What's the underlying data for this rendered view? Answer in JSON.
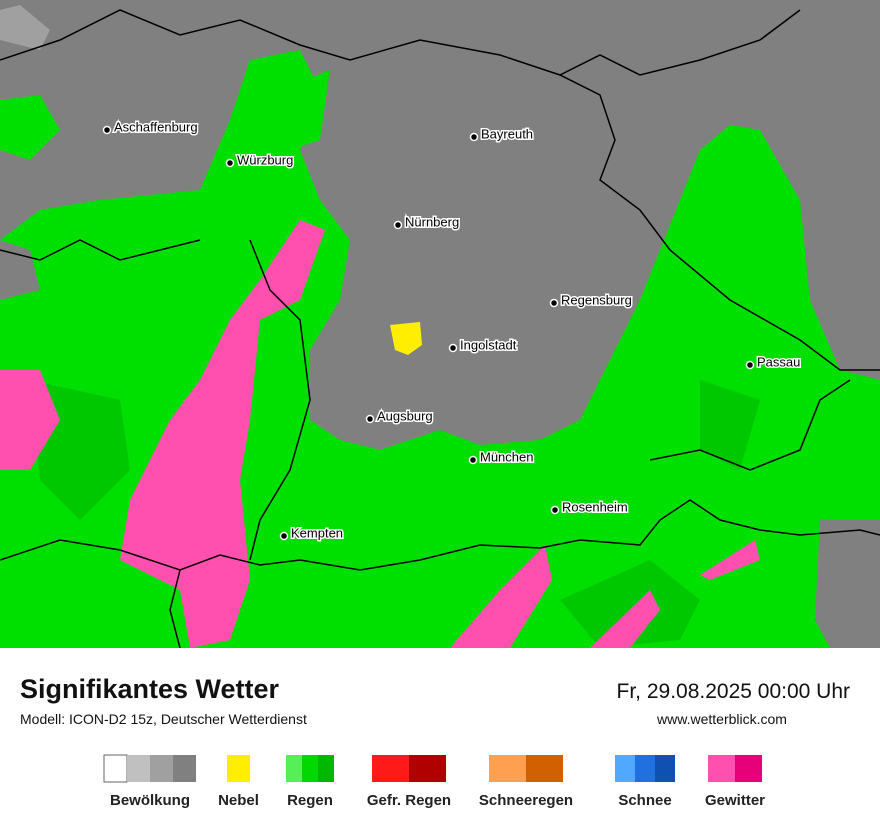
{
  "map": {
    "cities": [
      "Aschaffenburg",
      "Würzburg",
      "Bayreuth",
      "Nürnberg",
      "Regensburg",
      "Ingolstadt",
      "Passau",
      "Augsburg",
      "München",
      "Rosenheim",
      "Kempten"
    ]
  },
  "footer": {
    "title": "Signifikantes Wetter",
    "model": "Modell: ICON-D2 15z, Deutscher Wetterdienst",
    "datetime": "Fr, 29.08.2025 00:00 Uhr",
    "website": "www.wetterblick.com"
  },
  "legend": [
    {
      "label": "Bewölkung",
      "colors": [
        "#ffffff",
        "#c0c0c0",
        "#a0a0a0",
        "#808080"
      ]
    },
    {
      "label": "Nebel",
      "colors": [
        "#ffee00"
      ]
    },
    {
      "label": "Regen",
      "colors": [
        "#55f055",
        "#00d800",
        "#00b800"
      ]
    },
    {
      "label": "Gefr. Regen",
      "colors": [
        "#ff1a1a",
        "#b00000"
      ]
    },
    {
      "label": "Schneeregen",
      "colors": [
        "#ffa050",
        "#d06000"
      ]
    },
    {
      "label": "Schnee",
      "colors": [
        "#50a8ff",
        "#2070e0",
        "#1050b0"
      ]
    },
    {
      "label": "Gewitter",
      "colors": [
        "#ff50b0",
        "#e6007a"
      ]
    }
  ]
}
